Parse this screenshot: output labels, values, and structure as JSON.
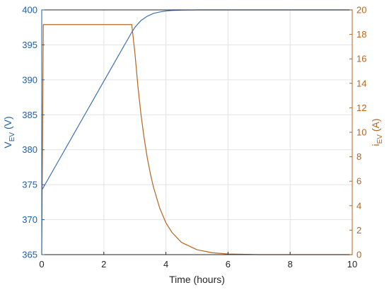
{
  "chart_data": {
    "type": "line",
    "xlabel": "Time (hours)",
    "ylabel_left": {
      "main": "V",
      "sub": "EV",
      "unit": " (V)"
    },
    "ylabel_right": {
      "main": "i",
      "sub": "EV",
      "unit": " (A)"
    },
    "xlim": [
      0,
      10
    ],
    "ylim_left": [
      365,
      400
    ],
    "ylim_right": [
      0,
      20
    ],
    "x_ticks": [
      0,
      2,
      4,
      6,
      8,
      10
    ],
    "y_left_ticks": [
      365,
      370,
      375,
      380,
      385,
      390,
      395,
      400
    ],
    "y_right_ticks": [
      0,
      2,
      4,
      6,
      8,
      10,
      12,
      14,
      16,
      18,
      20
    ],
    "grid": true,
    "colors": {
      "left_axis": "#1f5fa5",
      "right_axis": "#b5651d",
      "grid": "#e3e3e3",
      "box": "#262626"
    },
    "series": [
      {
        "axis": "left",
        "color": "#3f6fb5",
        "x": [
          0,
          0.5,
          1.0,
          1.5,
          2.0,
          2.5,
          2.9,
          3.0,
          3.2,
          3.4,
          3.6,
          3.8,
          4.0,
          4.2,
          4.5,
          5.0,
          6.0,
          8.0,
          10.0
        ],
        "y": [
          374.2,
          378.1,
          382.0,
          385.9,
          389.8,
          393.7,
          396.8,
          397.5,
          398.5,
          399.1,
          399.5,
          399.7,
          399.85,
          399.92,
          399.97,
          400.0,
          400.0,
          400.0,
          400.0
        ]
      },
      {
        "axis": "right",
        "color": "#b5651d",
        "x": [
          0,
          0.05,
          2.9,
          3.0,
          3.1,
          3.2,
          3.3,
          3.4,
          3.5,
          3.6,
          3.8,
          4.0,
          4.2,
          4.5,
          5.0,
          5.5,
          6.0,
          7.0,
          10.0
        ],
        "y": [
          0,
          18.8,
          18.8,
          16.5,
          13.7,
          11.4,
          9.5,
          7.9,
          6.6,
          5.5,
          3.8,
          2.6,
          1.8,
          1.0,
          0.4,
          0.15,
          0.05,
          0,
          0
        ]
      }
    ]
  }
}
